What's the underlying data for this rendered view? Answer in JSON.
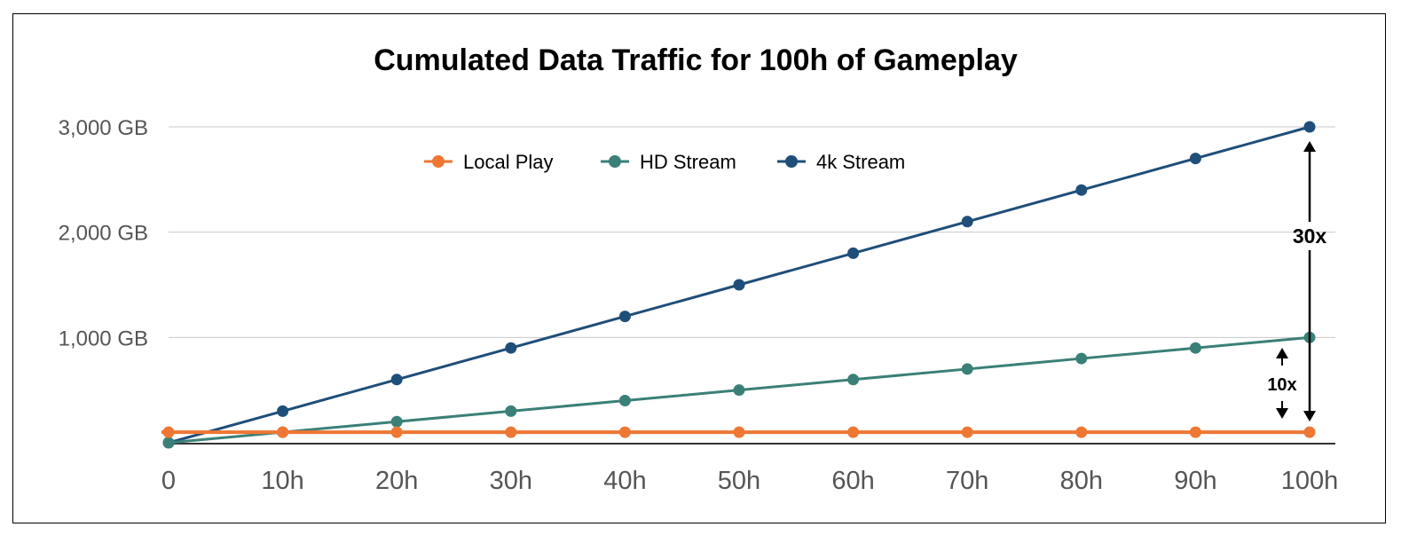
{
  "chart_data": {
    "type": "line",
    "title": "Cumulated Data Traffic for 100h of Gameplay",
    "xlabel": "",
    "ylabel": "",
    "x": [
      "0",
      "10h",
      "20h",
      "30h",
      "40h",
      "50h",
      "60h",
      "70h",
      "80h",
      "90h",
      "100h"
    ],
    "ylim": [
      0,
      3000
    ],
    "yticks": [
      {
        "value": 1000,
        "label": "1,000 GB"
      },
      {
        "value": 2000,
        "label": "2,000 GB"
      },
      {
        "value": 3000,
        "label": "3,000 GB"
      }
    ],
    "grid": true,
    "legend_position": "top",
    "series": [
      {
        "name": "Local Play",
        "color": "#ee7733",
        "values": [
          100,
          100,
          100,
          100,
          100,
          100,
          100,
          100,
          100,
          100,
          100
        ]
      },
      {
        "name": "HD Stream",
        "color": "#3a8078",
        "values": [
          0,
          100,
          200,
          300,
          400,
          500,
          600,
          700,
          800,
          900,
          1000
        ]
      },
      {
        "name": "4k Stream",
        "color": "#1f4e79",
        "values": [
          0,
          300,
          600,
          900,
          1200,
          1500,
          1800,
          2100,
          2400,
          2700,
          3000
        ]
      }
    ],
    "annotations": [
      {
        "text": "30x",
        "from_value": 100,
        "to_value": 3000
      },
      {
        "text": "10x",
        "from_value": 100,
        "to_value": 1000
      }
    ]
  }
}
